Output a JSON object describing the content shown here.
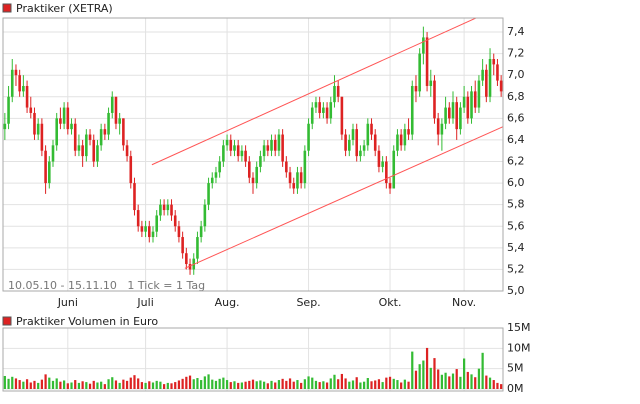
{
  "chart_data": [
    {
      "type": "candlestick",
      "title": "Praktiker (XETRA)",
      "subtitle": "10.05.10 - 15.11.10   1 Tick = 1 Tag",
      "up_color": "#33bb33",
      "down_color": "#dd2222",
      "grid": true,
      "xlim": [
        -0.5,
        134.5
      ],
      "xticks": [
        {
          "value": 17,
          "label": "Juni"
        },
        {
          "value": 38,
          "label": "Juli"
        },
        {
          "value": 60,
          "label": "Aug."
        },
        {
          "value": 82,
          "label": "Sep."
        },
        {
          "value": 104,
          "label": "Okt."
        },
        {
          "value": 124,
          "label": "Nov."
        }
      ],
      "ylim": [
        5.0,
        7.53
      ],
      "yticks": [
        {
          "value": 5.0,
          "label": "5,0"
        },
        {
          "value": 5.2,
          "label": "5,2"
        },
        {
          "value": 5.4,
          "label": "5,4"
        },
        {
          "value": 5.6,
          "label": "5,6"
        },
        {
          "value": 5.8,
          "label": "5,8"
        },
        {
          "value": 6.0,
          "label": "6,0"
        },
        {
          "value": 6.2,
          "label": "6,2"
        },
        {
          "value": 6.4,
          "label": "6,4"
        },
        {
          "value": 6.6,
          "label": "6,6"
        },
        {
          "value": 6.8,
          "label": "6,8"
        },
        {
          "value": 7.0,
          "label": "7,0"
        },
        {
          "value": 7.2,
          "label": "7,2"
        },
        {
          "value": 7.4,
          "label": "7,4"
        }
      ],
      "channel": [
        {
          "color": "#ff5555",
          "x": [
            39.7,
            133
          ],
          "y": [
            6.17,
            7.62
          ]
        },
        {
          "color": "#ff5555",
          "x": [
            48.6,
            135
          ],
          "y": [
            5.21,
            6.53
          ]
        }
      ],
      "ohlc": [
        [
          6.5,
          6.65,
          6.4,
          6.55
        ],
        [
          6.55,
          6.9,
          6.5,
          6.8
        ],
        [
          6.8,
          7.15,
          6.75,
          7.05
        ],
        [
          7.05,
          7.1,
          6.9,
          7.0
        ],
        [
          7.0,
          7.05,
          6.8,
          6.85
        ],
        [
          6.85,
          7.0,
          6.8,
          6.9
        ],
        [
          6.9,
          6.95,
          6.65,
          6.7
        ],
        [
          6.7,
          6.8,
          6.6,
          6.65
        ],
        [
          6.65,
          6.7,
          6.4,
          6.45
        ],
        [
          6.45,
          6.6,
          6.4,
          6.55
        ],
        [
          6.55,
          6.6,
          6.25,
          6.3
        ],
        [
          6.3,
          6.35,
          5.9,
          6.0
        ],
        [
          6.0,
          6.25,
          5.95,
          6.2
        ],
        [
          6.2,
          6.4,
          6.15,
          6.35
        ],
        [
          6.35,
          6.65,
          6.3,
          6.6
        ],
        [
          6.6,
          6.7,
          6.5,
          6.55
        ],
        [
          6.55,
          6.75,
          6.5,
          6.7
        ],
        [
          6.7,
          6.75,
          6.45,
          6.5
        ],
        [
          6.5,
          6.6,
          6.45,
          6.55
        ],
        [
          6.55,
          6.6,
          6.25,
          6.3
        ],
        [
          6.3,
          6.45,
          6.25,
          6.35
        ],
        [
          6.35,
          6.4,
          6.15,
          6.25
        ],
        [
          6.25,
          6.5,
          6.2,
          6.45
        ],
        [
          6.45,
          6.5,
          6.35,
          6.4
        ],
        [
          6.4,
          6.45,
          6.15,
          6.2
        ],
        [
          6.2,
          6.4,
          6.15,
          6.35
        ],
        [
          6.35,
          6.55,
          6.3,
          6.5
        ],
        [
          6.5,
          6.55,
          6.4,
          6.45
        ],
        [
          6.45,
          6.7,
          6.4,
          6.65
        ],
        [
          6.65,
          6.85,
          6.6,
          6.8
        ],
        [
          6.8,
          6.8,
          6.5,
          6.55
        ],
        [
          6.55,
          6.65,
          6.45,
          6.6
        ],
        [
          6.6,
          6.6,
          6.3,
          6.35
        ],
        [
          6.35,
          6.4,
          6.2,
          6.25
        ],
        [
          6.25,
          6.3,
          5.95,
          6.0
        ],
        [
          6.0,
          6.05,
          5.7,
          5.75
        ],
        [
          5.75,
          5.8,
          5.55,
          5.6
        ],
        [
          5.6,
          5.65,
          5.5,
          5.55
        ],
        [
          5.55,
          5.65,
          5.5,
          5.6
        ],
        [
          5.6,
          5.65,
          5.45,
          5.5
        ],
        [
          5.5,
          5.6,
          5.45,
          5.55
        ],
        [
          5.55,
          5.75,
          5.5,
          5.7
        ],
        [
          5.7,
          5.85,
          5.65,
          5.8
        ],
        [
          5.8,
          5.85,
          5.7,
          5.75
        ],
        [
          5.75,
          5.85,
          5.7,
          5.8
        ],
        [
          5.8,
          5.85,
          5.65,
          5.7
        ],
        [
          5.7,
          5.75,
          5.55,
          5.6
        ],
        [
          5.6,
          5.65,
          5.45,
          5.5
        ],
        [
          5.5,
          5.55,
          5.3,
          5.35
        ],
        [
          5.35,
          5.4,
          5.2,
          5.25
        ],
        [
          5.25,
          5.3,
          5.15,
          5.2
        ],
        [
          5.2,
          5.35,
          5.15,
          5.3
        ],
        [
          5.3,
          5.55,
          5.25,
          5.5
        ],
        [
          5.5,
          5.65,
          5.45,
          5.6
        ],
        [
          5.6,
          5.85,
          5.55,
          5.8
        ],
        [
          5.8,
          6.05,
          5.75,
          6.0
        ],
        [
          6.0,
          6.1,
          5.95,
          6.05
        ],
        [
          6.05,
          6.15,
          6.0,
          6.1
        ],
        [
          6.1,
          6.25,
          6.05,
          6.2
        ],
        [
          6.2,
          6.4,
          6.15,
          6.35
        ],
        [
          6.35,
          6.45,
          6.3,
          6.4
        ],
        [
          6.4,
          6.45,
          6.25,
          6.3
        ],
        [
          6.3,
          6.4,
          6.25,
          6.35
        ],
        [
          6.35,
          6.4,
          6.2,
          6.25
        ],
        [
          6.25,
          6.35,
          6.2,
          6.3
        ],
        [
          6.3,
          6.35,
          6.15,
          6.2
        ],
        [
          6.2,
          6.25,
          6.0,
          6.05
        ],
        [
          6.05,
          6.1,
          5.9,
          6.0
        ],
        [
          6.0,
          6.2,
          5.95,
          6.15
        ],
        [
          6.15,
          6.3,
          6.1,
          6.25
        ],
        [
          6.25,
          6.4,
          6.2,
          6.35
        ],
        [
          6.35,
          6.4,
          6.25,
          6.3
        ],
        [
          6.3,
          6.45,
          6.25,
          6.4
        ],
        [
          6.4,
          6.45,
          6.25,
          6.3
        ],
        [
          6.3,
          6.5,
          6.25,
          6.45
        ],
        [
          6.45,
          6.5,
          6.15,
          6.2
        ],
        [
          6.2,
          6.25,
          6.05,
          6.1
        ],
        [
          6.1,
          6.15,
          5.95,
          6.0
        ],
        [
          6.0,
          6.05,
          5.9,
          5.95
        ],
        [
          5.95,
          6.15,
          5.9,
          6.1
        ],
        [
          6.1,
          6.15,
          5.95,
          6.0
        ],
        [
          6.0,
          6.35,
          5.95,
          6.3
        ],
        [
          6.3,
          6.6,
          6.25,
          6.55
        ],
        [
          6.55,
          6.75,
          6.5,
          6.7
        ],
        [
          6.7,
          6.8,
          6.65,
          6.75
        ],
        [
          6.75,
          6.8,
          6.6,
          6.65
        ],
        [
          6.65,
          6.75,
          6.6,
          6.7
        ],
        [
          6.7,
          6.75,
          6.55,
          6.6
        ],
        [
          6.6,
          6.8,
          6.55,
          6.75
        ],
        [
          6.75,
          7.0,
          6.7,
          6.9
        ],
        [
          6.9,
          6.95,
          6.75,
          6.8
        ],
        [
          6.8,
          6.8,
          6.4,
          6.45
        ],
        [
          6.45,
          6.5,
          6.25,
          6.3
        ],
        [
          6.3,
          6.45,
          6.25,
          6.4
        ],
        [
          6.4,
          6.55,
          6.35,
          6.5
        ],
        [
          6.5,
          6.55,
          6.2,
          6.25
        ],
        [
          6.25,
          6.35,
          6.2,
          6.3
        ],
        [
          6.3,
          6.4,
          6.25,
          6.35
        ],
        [
          6.35,
          6.6,
          6.3,
          6.55
        ],
        [
          6.55,
          6.6,
          6.4,
          6.45
        ],
        [
          6.45,
          6.5,
          6.25,
          6.3
        ],
        [
          6.3,
          6.35,
          6.1,
          6.15
        ],
        [
          6.15,
          6.25,
          6.1,
          6.2
        ],
        [
          6.2,
          6.25,
          5.95,
          6.0
        ],
        [
          6.0,
          6.05,
          5.9,
          5.95
        ],
        [
          5.95,
          6.35,
          5.95,
          6.3
        ],
        [
          6.3,
          6.5,
          6.25,
          6.45
        ],
        [
          6.45,
          6.5,
          6.3,
          6.35
        ],
        [
          6.35,
          6.55,
          6.3,
          6.5
        ],
        [
          6.5,
          6.6,
          6.4,
          6.45
        ],
        [
          6.45,
          6.95,
          6.4,
          6.9
        ],
        [
          6.9,
          7.0,
          6.75,
          6.85
        ],
        [
          6.85,
          7.25,
          6.8,
          7.2
        ],
        [
          7.2,
          7.45,
          7.1,
          7.35
        ],
        [
          7.35,
          7.4,
          6.85,
          6.9
        ],
        [
          6.9,
          7.05,
          6.8,
          6.95
        ],
        [
          6.95,
          7.0,
          6.55,
          6.6
        ],
        [
          6.6,
          6.65,
          6.35,
          6.45
        ],
        [
          6.45,
          6.6,
          6.3,
          6.55
        ],
        [
          6.55,
          6.8,
          6.5,
          6.7
        ],
        [
          6.7,
          6.75,
          6.55,
          6.6
        ],
        [
          6.6,
          6.85,
          6.55,
          6.75
        ],
        [
          6.75,
          6.8,
          6.4,
          6.5
        ],
        [
          6.5,
          6.75,
          6.45,
          6.7
        ],
        [
          6.7,
          6.9,
          6.65,
          6.8
        ],
        [
          6.8,
          6.85,
          6.55,
          6.6
        ],
        [
          6.6,
          6.9,
          6.55,
          6.85
        ],
        [
          6.85,
          6.95,
          6.65,
          6.7
        ],
        [
          6.7,
          7.0,
          6.65,
          6.95
        ],
        [
          6.95,
          7.15,
          6.9,
          7.05
        ],
        [
          7.05,
          7.1,
          6.75,
          6.8
        ],
        [
          6.8,
          7.25,
          6.75,
          7.15
        ],
        [
          7.15,
          7.2,
          7.0,
          7.1
        ],
        [
          7.1,
          7.15,
          6.9,
          6.95
        ],
        [
          6.95,
          7.0,
          6.8,
          6.85
        ]
      ]
    },
    {
      "type": "volume",
      "title": "Praktiker Volumen in Euro",
      "up_color": "#33bb33",
      "down_color": "#dd2222",
      "ylim": [
        0,
        15000000
      ],
      "yticks": [
        {
          "value": 0,
          "label": "0M"
        },
        {
          "value": 5000000,
          "label": "5M"
        },
        {
          "value": 10000000,
          "label": "10M"
        },
        {
          "value": 15000000,
          "label": "15M"
        }
      ],
      "values": [
        3200000,
        2500000,
        3000000,
        2600000,
        2200000,
        1800000,
        2400000,
        1600000,
        2000000,
        1500000,
        2300000,
        3600000,
        2800000,
        2000000,
        2600000,
        1800000,
        2100000,
        1400000,
        1600000,
        2200000,
        1500000,
        1900000,
        1700000,
        1300000,
        2000000,
        1600000,
        1800000,
        1200000,
        2400000,
        2900000,
        2100000,
        1500000,
        2300000,
        2000000,
        2800000,
        3400000,
        2600000,
        1700000,
        1500000,
        1900000,
        1600000,
        2000000,
        1800000,
        1200000,
        1500000,
        1400000,
        1700000,
        2100000,
        2500000,
        3000000,
        3300000,
        2400000,
        2700000,
        2200000,
        3100000,
        3600000,
        2300000,
        2000000,
        2500000,
        2800000,
        2200000,
        1700000,
        1900000,
        1500000,
        1600000,
        1800000,
        2000000,
        2300000,
        1900000,
        2100000,
        1800000,
        1400000,
        2000000,
        1600000,
        2200000,
        2500000,
        2000000,
        2600000,
        1800000,
        2200000,
        1500000,
        2400000,
        3100000,
        2800000,
        2000000,
        1700000,
        1900000,
        1600000,
        2600000,
        3500000,
        2400000,
        3700000,
        2600000,
        1800000,
        2100000,
        2900000,
        1600000,
        1800000,
        2700000,
        1900000,
        2100000,
        2400000,
        1700000,
        2800000,
        3000000,
        2500000,
        2200000,
        1600000,
        2300000,
        1800000,
        9200000,
        4500000,
        6100000,
        7000000,
        10100000,
        5200000,
        7600000,
        4800000,
        3500000,
        4000000,
        3100000,
        3800000,
        4900000,
        3000000,
        7500000,
        4200000,
        3600000,
        2900000,
        5000000,
        8900000,
        3300000,
        2800000,
        2200000,
        1500000,
        1200000
      ]
    }
  ]
}
